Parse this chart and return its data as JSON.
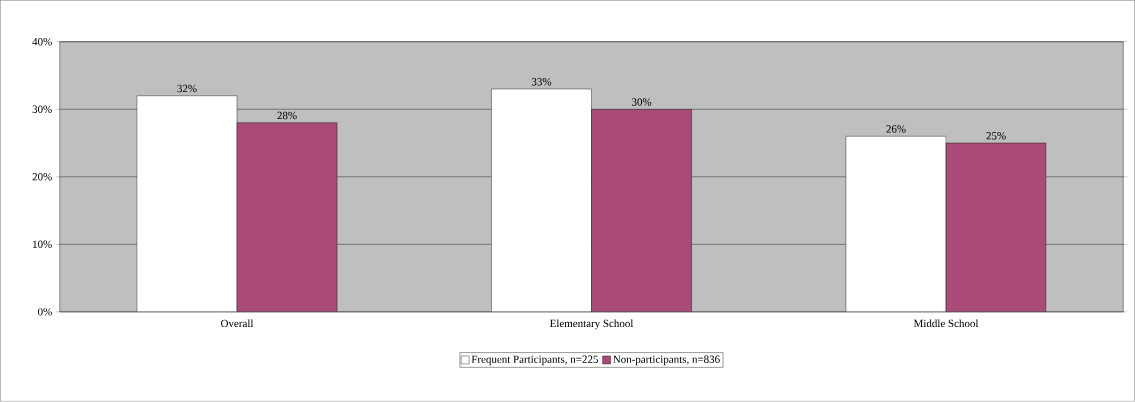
{
  "chart_data": {
    "type": "bar",
    "categories": [
      "Overall",
      "Elementary School",
      "Middle School"
    ],
    "series": [
      {
        "name": "Frequent Participants, n=225",
        "color": "#ffffff",
        "values": [
          32,
          33,
          26
        ],
        "value_labels": [
          "32%",
          "33%",
          "26%"
        ]
      },
      {
        "name": "Non-participants, n=836",
        "color": "#aa4a78",
        "values": [
          28,
          30,
          25
        ],
        "value_labels": [
          "28%",
          "30%",
          "25%"
        ]
      }
    ],
    "ylim": [
      0,
      40
    ],
    "yticks": [
      {
        "value": 0,
        "label": "0%"
      },
      {
        "value": 10,
        "label": "10%"
      },
      {
        "value": 20,
        "label": "20%"
      },
      {
        "value": 30,
        "label": "30%"
      },
      {
        "value": 40,
        "label": "40%"
      }
    ],
    "grid": "y",
    "legend": "bottom"
  }
}
